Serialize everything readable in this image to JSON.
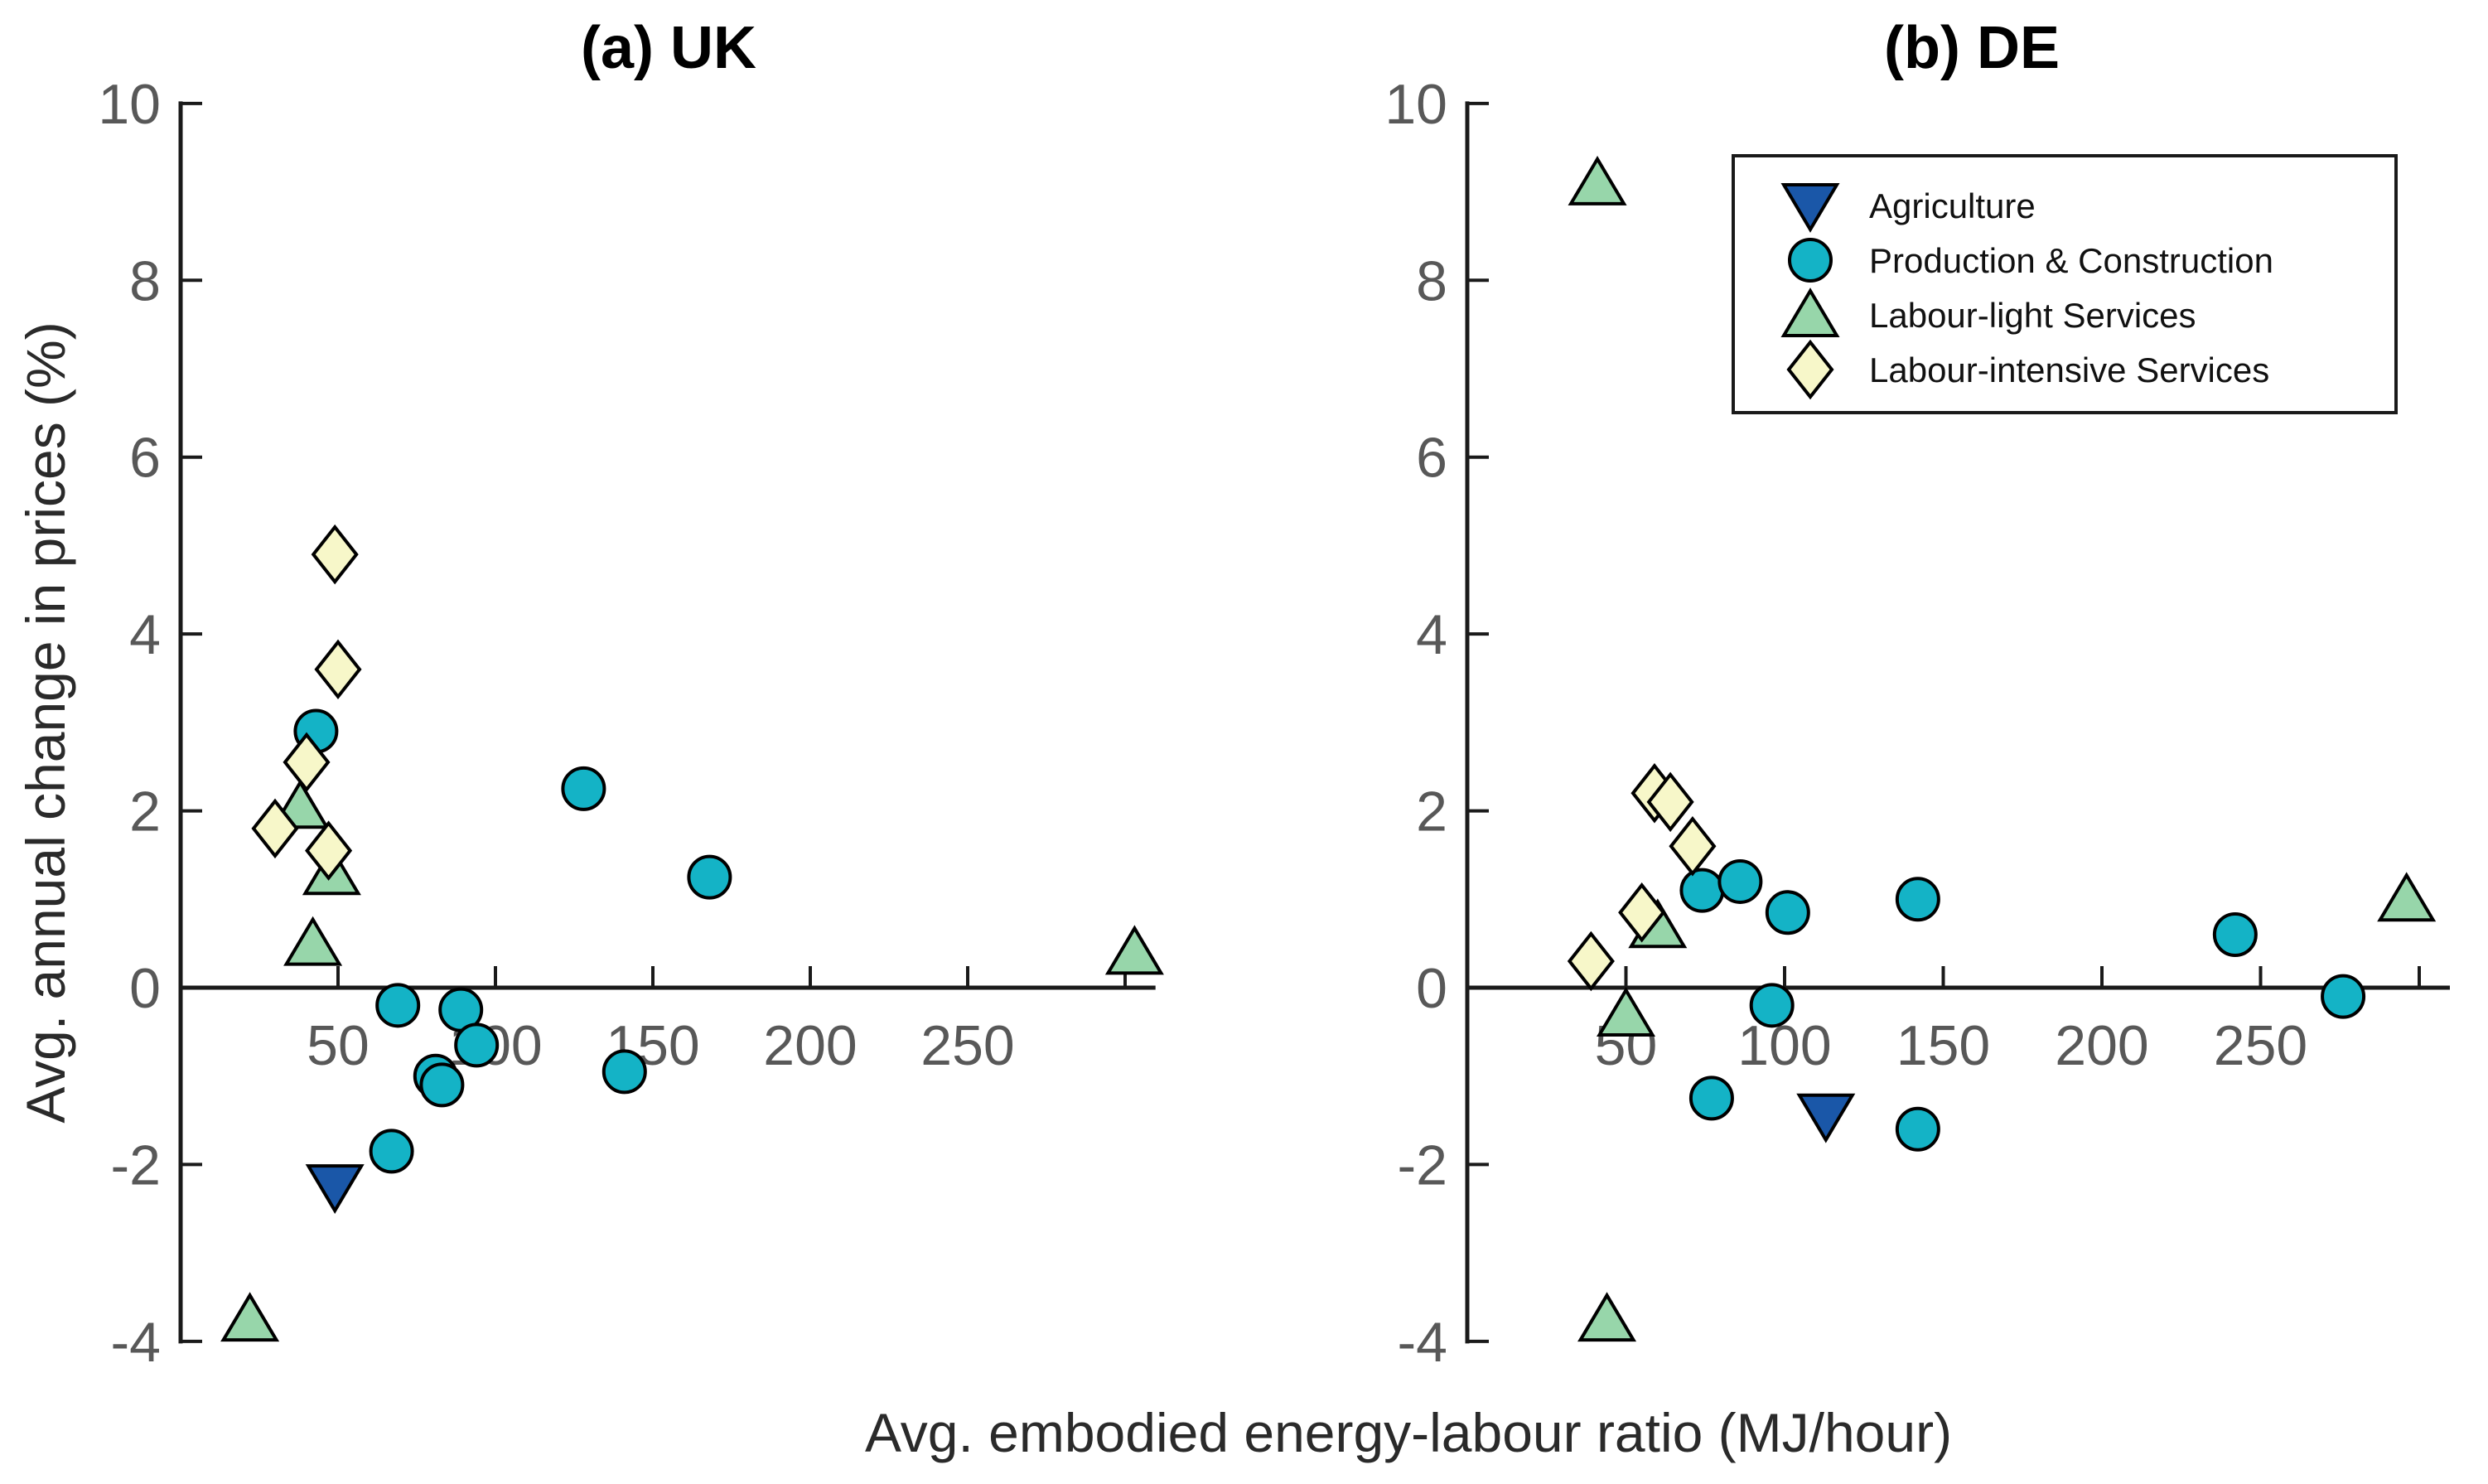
{
  "figure": {
    "x_axis_label": "Avg. embodied energy-labour ratio (MJ/hour)",
    "y_axis_label": "Avg. annual change in prices (%)"
  },
  "colors": {
    "agriculture": "#1a57a8",
    "production_construction": "#14b3c6",
    "labour_light": "#97d6aa",
    "labour_intensive": "#f7f7c9",
    "axis": "#1a1a1a",
    "tick_text": "#585858",
    "background": "#ffffff"
  },
  "legend": {
    "position": "top-right-panel-b",
    "items": [
      {
        "label": "Agriculture",
        "marker": "triangle-down",
        "color": "#1a57a8"
      },
      {
        "label": "Production & Construction",
        "marker": "circle",
        "color": "#14b3c6"
      },
      {
        "label": "Labour-light Services",
        "marker": "triangle-up",
        "color": "#97d6aa"
      },
      {
        "label": "Labour-intensive Services",
        "marker": "diamond",
        "color": "#f7f7c9"
      }
    ]
  },
  "chart_data": [
    {
      "type": "scatter",
      "title": "(a) UK",
      "xlabel": "Avg. embodied energy-labour ratio (MJ/hour)",
      "ylabel": "Avg. annual change in prices (%)",
      "xlim": [
        0,
        309
      ],
      "ylim": [
        -4,
        10
      ],
      "x_ticks": [
        50,
        100,
        150,
        200,
        250
      ],
      "x_ticks_unlabeled": [
        300
      ],
      "y_ticks": [
        -4,
        -2,
        0,
        2,
        4,
        6,
        8,
        10
      ],
      "grid": false,
      "series": [
        {
          "name": "Agriculture",
          "marker": "triangle-down",
          "color": "#1a57a8",
          "points": [
            [
              49,
              -2.25
            ]
          ]
        },
        {
          "name": "Production & Construction",
          "marker": "circle",
          "color": "#14b3c6",
          "points": [
            [
              43,
              2.9
            ],
            [
              128,
              2.25
            ],
            [
              168,
              1.25
            ],
            [
              69,
              -0.2
            ],
            [
              89,
              -0.25
            ],
            [
              94,
              -0.65
            ],
            [
              81,
              -1.0
            ],
            [
              83,
              -1.1
            ],
            [
              141,
              -0.95
            ],
            [
              67,
              -1.85
            ]
          ]
        },
        {
          "name": "Labour-light Services",
          "marker": "triangle-up",
          "color": "#97d6aa",
          "points": [
            [
              38,
              2.05
            ],
            [
              48,
              1.3
            ],
            [
              42,
              0.5
            ],
            [
              303,
              0.4
            ],
            [
              22,
              -3.75
            ]
          ]
        },
        {
          "name": "Labour-intensive Services",
          "marker": "diamond",
          "color": "#f7f7c9",
          "points": [
            [
              49,
              4.9
            ],
            [
              50,
              3.6
            ],
            [
              40,
              2.55
            ],
            [
              30,
              1.8
            ],
            [
              47,
              1.55
            ]
          ]
        }
      ]
    },
    {
      "type": "scatter",
      "title": "(b) DE",
      "xlabel": "Avg. embodied energy-labour ratio (MJ/hour)",
      "ylabel": "Avg. annual change in prices (%)",
      "xlim": [
        0,
        309
      ],
      "ylim": [
        -4,
        10
      ],
      "x_ticks": [
        50,
        100,
        150,
        200,
        250
      ],
      "x_ticks_unlabeled": [
        300
      ],
      "y_ticks": [
        -4,
        -2,
        0,
        2,
        4,
        6,
        8,
        10
      ],
      "grid": false,
      "series": [
        {
          "name": "Agriculture",
          "marker": "triangle-down",
          "color": "#1a57a8",
          "points": [
            [
              113,
              -1.45
            ]
          ]
        },
        {
          "name": "Production & Construction",
          "marker": "circle",
          "color": "#14b3c6",
          "points": [
            [
              74,
              1.1
            ],
            [
              86,
              1.2
            ],
            [
              101,
              0.85
            ],
            [
              142,
              1.0
            ],
            [
              242,
              0.6
            ],
            [
              276,
              -0.1
            ],
            [
              96,
              -0.2
            ],
            [
              77,
              -1.25
            ],
            [
              142,
              -1.6
            ]
          ]
        },
        {
          "name": "Labour-light Services",
          "marker": "triangle-up",
          "color": "#97d6aa",
          "points": [
            [
              41,
              9.1
            ],
            [
              60,
              0.7
            ],
            [
              50,
              -0.3
            ],
            [
              296,
              1.0
            ],
            [
              44,
              -3.75
            ]
          ]
        },
        {
          "name": "Labour-intensive Services",
          "marker": "diamond",
          "color": "#f7f7c9",
          "points": [
            [
              59,
              2.2
            ],
            [
              64,
              2.1
            ],
            [
              71,
              1.6
            ],
            [
              55,
              0.85
            ],
            [
              39,
              0.3
            ]
          ]
        }
      ]
    }
  ]
}
